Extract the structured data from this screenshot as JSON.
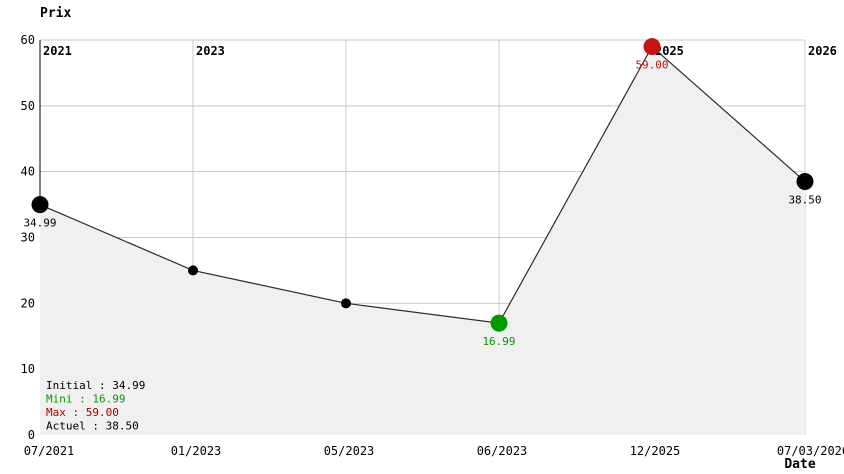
{
  "chart_data": {
    "type": "line",
    "title": "Prix",
    "xlabel": "Date",
    "categories": [
      "07/2021",
      "01/2023",
      "05/2023",
      "06/2023",
      "12/2025",
      "07/03/2026"
    ],
    "values": [
      34.99,
      25,
      20,
      16.99,
      59,
      38.5
    ],
    "ylim": [
      0,
      60
    ],
    "yticks": [
      0,
      10,
      20,
      30,
      40,
      50,
      60
    ],
    "grid": true,
    "area_fill": true,
    "legend_position": "bottom-left-inside",
    "points": [
      {
        "x": "07/2021",
        "value": 34.99,
        "label": "34.99",
        "color": "#000000",
        "size": "large",
        "role": "initial"
      },
      {
        "x": "01/2023",
        "value": 25,
        "label": "",
        "color": "#000000",
        "size": "small",
        "role": "intermediate"
      },
      {
        "x": "05/2023",
        "value": 20,
        "label": "",
        "color": "#000000",
        "size": "small",
        "role": "intermediate"
      },
      {
        "x": "06/2023",
        "value": 16.99,
        "label": "16.99",
        "color": "#009900",
        "size": "large",
        "role": "minimum"
      },
      {
        "x": "12/2025",
        "value": 59,
        "label": "59.00",
        "color": "#c41414",
        "size": "large",
        "role": "maximum"
      },
      {
        "x": "07/03/2026",
        "value": 38.5,
        "label": "38.50",
        "color": "#000000",
        "size": "large",
        "role": "current"
      }
    ],
    "year_labels": [
      {
        "text": "2021",
        "index": 0
      },
      {
        "text": "2023",
        "index": 1
      },
      {
        "text": "2025",
        "index": 4
      },
      {
        "text": "2026",
        "index": 5
      }
    ],
    "legend": [
      {
        "key": "initial",
        "label": "Initial : 34.99",
        "color": "#000000"
      },
      {
        "key": "mini",
        "label": "Mini : 16.99",
        "color": "#009900"
      },
      {
        "key": "max",
        "label": "Max : 59.00",
        "color": "#aa0000"
      },
      {
        "key": "actuel",
        "label": "Actuel : 38.50",
        "color": "#000000"
      }
    ],
    "colors": {
      "area_fill": "#f0f0f0",
      "grid": "#c8c8c8",
      "line": "#2b2b2b",
      "axis": "#000000",
      "text": "#000000",
      "min": "#009900",
      "max": "#c41414"
    }
  }
}
